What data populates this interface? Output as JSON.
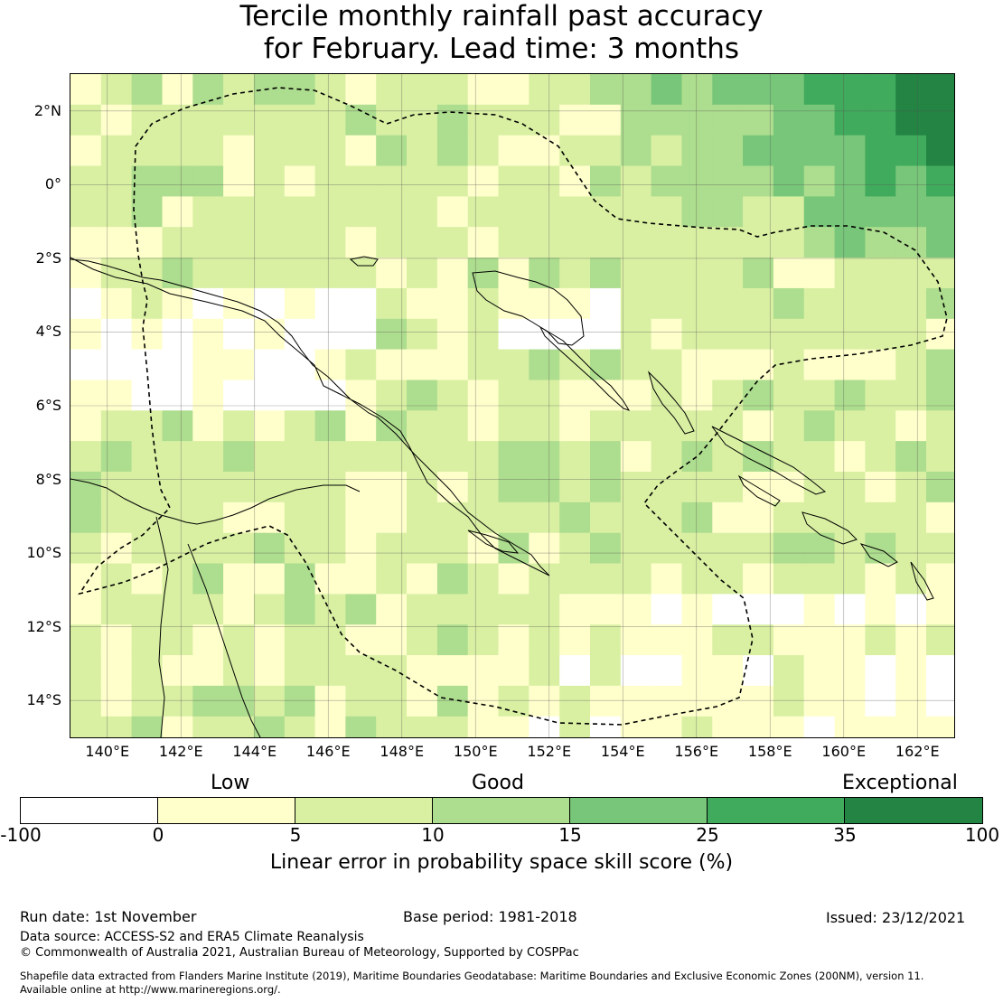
{
  "title": {
    "line1": "Tercile monthly rainfall past accuracy",
    "line2": "for February. Lead time: 3 months"
  },
  "map": {
    "lat_labels": [
      "2°N",
      "0°",
      "2°S",
      "4°S",
      "6°S",
      "8°S",
      "10°S",
      "12°S",
      "14°S"
    ],
    "lon_labels": [
      "140°E",
      "142°E",
      "144°E",
      "146°E",
      "148°E",
      "150°E",
      "152°E",
      "154°E",
      "156°E",
      "158°E",
      "160°E",
      "162°E"
    ],
    "lon_range": [
      139.0,
      163.0
    ],
    "lat_range": [
      -15.0,
      3.0
    ],
    "grid_resolution_deg": 0.83,
    "eez_boundary_style": "dashed"
  },
  "colorbar": {
    "category_labels": {
      "low": "Low",
      "good": "Good",
      "exceptional": "Exceptional"
    },
    "ticks": [
      "-100",
      "0",
      "5",
      "10",
      "15",
      "25",
      "35",
      "100"
    ],
    "colors": [
      "#ffffff",
      "#ffffcc",
      "#d9f0a3",
      "#addd8e",
      "#78c679",
      "#41ab5d",
      "#238443"
    ],
    "label": "Linear error in probability space skill score (%)"
  },
  "footer": {
    "run_date": "Run date: 1st November",
    "base_period": "Base period: 1981-2018",
    "issued": "Issued: 23/12/2021",
    "data_source": "Data source: ACCESS-S2 and ERA5 Climate Reanalysis",
    "copyright": "© Commonwealth of Australia 2021, Australian Bureau of Meteorology, Supported by COSPPac",
    "shapefile_line1": "Shapefile data extracted from Flanders Marine Institute (2019), Maritime Boundaries Geodatabase: Maritime Boundaries and Exclusive Economic Zones (200NM), version 11.",
    "shapefile_line2": "Available online at http://www.marineregions.org/."
  }
}
